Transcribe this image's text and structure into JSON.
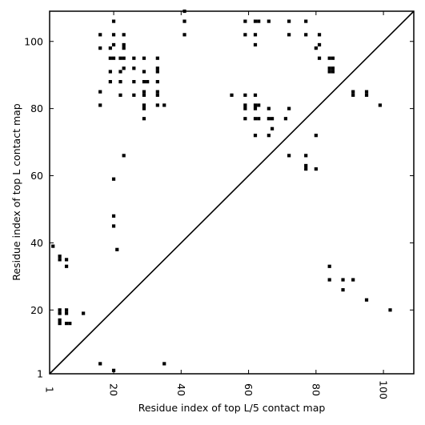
{
  "chart_data": {
    "type": "scatter",
    "xlabel": "Residue index of top L/5 contact map",
    "ylabel": "Residue index of top L contact map",
    "xlim": [
      1,
      109
    ],
    "ylim": [
      1,
      109
    ],
    "x_ticks": [
      "1",
      "20",
      "40",
      "60",
      "80",
      "100"
    ],
    "y_ticks": [
      "1",
      "20",
      "40",
      "60",
      "80",
      "100"
    ],
    "diagonal": true,
    "grid": false,
    "marker_color": "#000000",
    "upper_points": [
      [
        16,
        102
      ],
      [
        16,
        98
      ],
      [
        20,
        106
      ],
      [
        20,
        102
      ],
      [
        19,
        98
      ],
      [
        20,
        99
      ],
      [
        23,
        102
      ],
      [
        23,
        98
      ],
      [
        23,
        99
      ],
      [
        19,
        95
      ],
      [
        20,
        95
      ],
      [
        22,
        95
      ],
      [
        23,
        95
      ],
      [
        26,
        95
      ],
      [
        29,
        95
      ],
      [
        33,
        95
      ],
      [
        19,
        91
      ],
      [
        22,
        91
      ],
      [
        23,
        92
      ],
      [
        26,
        92
      ],
      [
        29,
        91
      ],
      [
        33,
        92
      ],
      [
        33,
        91
      ],
      [
        19,
        88
      ],
      [
        22,
        88
      ],
      [
        26,
        88
      ],
      [
        29,
        88
      ],
      [
        30,
        88
      ],
      [
        33,
        88
      ],
      [
        16,
        85
      ],
      [
        22,
        84
      ],
      [
        26,
        84
      ],
      [
        29,
        85
      ],
      [
        29,
        84
      ],
      [
        33,
        85
      ],
      [
        33,
        84
      ],
      [
        16,
        81
      ],
      [
        29,
        81
      ],
      [
        29,
        80
      ],
      [
        33,
        81
      ],
      [
        35,
        81
      ],
      [
        29,
        77
      ],
      [
        23,
        66
      ],
      [
        20,
        59
      ],
      [
        41,
        109
      ],
      [
        41,
        106
      ],
      [
        41,
        102
      ],
      [
        59,
        106
      ],
      [
        62,
        106
      ],
      [
        63,
        106
      ],
      [
        66,
        106
      ],
      [
        72,
        106
      ],
      [
        77,
        106
      ],
      [
        59,
        102
      ],
      [
        62,
        102
      ],
      [
        72,
        102
      ],
      [
        77,
        102
      ],
      [
        62,
        99
      ],
      [
        81,
        102
      ],
      [
        80,
        98
      ],
      [
        81,
        99
      ],
      [
        81,
        95
      ],
      [
        84,
        95
      ],
      [
        85,
        95
      ],
      [
        84,
        92
      ],
      [
        85,
        92
      ],
      [
        84,
        91
      ],
      [
        85,
        91
      ],
      [
        55,
        84
      ],
      [
        59,
        84
      ],
      [
        62,
        84
      ],
      [
        59,
        81
      ],
      [
        59,
        80
      ],
      [
        62,
        81
      ],
      [
        63,
        81
      ],
      [
        62,
        80
      ],
      [
        66,
        80
      ],
      [
        72,
        80
      ],
      [
        59,
        77
      ],
      [
        62,
        77
      ],
      [
        63,
        77
      ],
      [
        66,
        77
      ],
      [
        67,
        77
      ],
      [
        71,
        77
      ],
      [
        67,
        74
      ],
      [
        62,
        72
      ],
      [
        66,
        72
      ],
      [
        80,
        72
      ],
      [
        72,
        66
      ],
      [
        77,
        66
      ],
      [
        77,
        63
      ],
      [
        77,
        62
      ],
      [
        80,
        62
      ],
      [
        91,
        85
      ],
      [
        91,
        84
      ],
      [
        95,
        85
      ],
      [
        95,
        84
      ],
      [
        99,
        81
      ]
    ],
    "lower_points": [
      [
        2,
        39
      ],
      [
        4,
        36
      ],
      [
        4,
        35
      ],
      [
        6,
        35
      ],
      [
        6,
        33
      ],
      [
        4,
        20
      ],
      [
        4,
        19
      ],
      [
        6,
        20
      ],
      [
        6,
        19
      ],
      [
        11,
        19
      ],
      [
        4,
        17
      ],
      [
        4,
        16
      ],
      [
        6,
        16
      ],
      [
        7,
        16
      ],
      [
        21,
        38
      ],
      [
        20,
        48
      ],
      [
        20,
        45
      ],
      [
        16,
        4
      ],
      [
        20,
        2
      ],
      [
        35,
        4
      ],
      [
        84,
        33
      ],
      [
        84,
        29
      ],
      [
        88,
        29
      ],
      [
        91,
        29
      ],
      [
        88,
        26
      ],
      [
        95,
        23
      ],
      [
        102,
        20
      ]
    ]
  }
}
